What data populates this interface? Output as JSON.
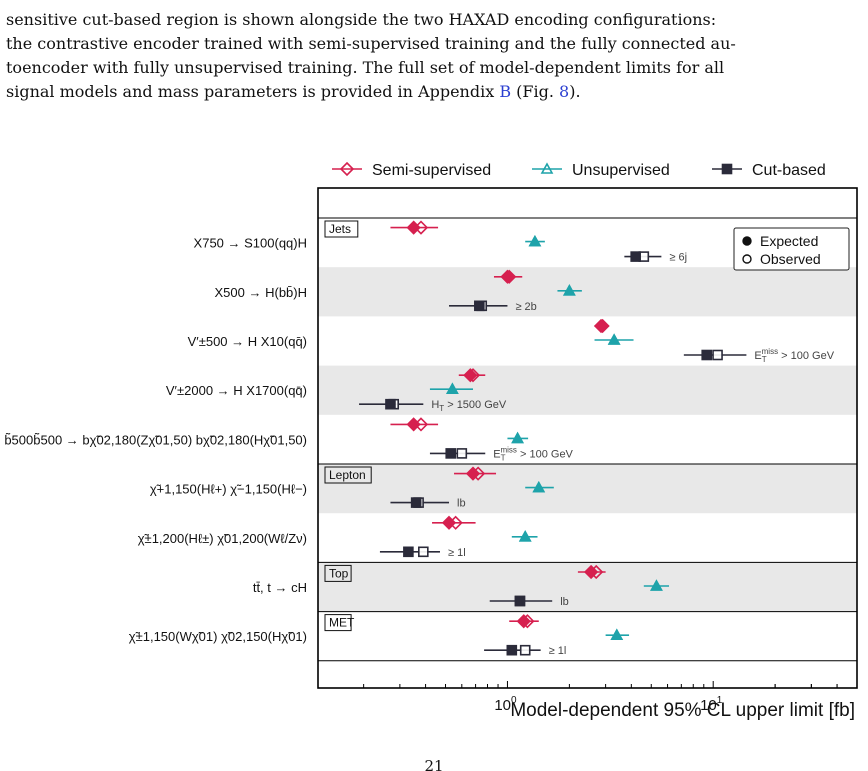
{
  "paper": {
    "line1": "sensitive cut-based region is shown alongside the two HAXAD encoding configurations:",
    "line2": "the contrastive encoder trained with semi-supervised training and the fully connected au-",
    "line3": "toencoder with fully unsupervised training. The full set of model-dependent limits for all",
    "line4_pre": "signal models and mass parameters is provided in Appendix ",
    "line4_link1": "B",
    "line4_mid": " (Fig. ",
    "line4_link2": "8",
    "line4_post": ").",
    "page_number": "21"
  },
  "chart_data": {
    "type": "scatter",
    "xscale": "log",
    "xlim": [
      0.12,
      50
    ],
    "xlabel": "Model-dependent 95% CL upper limit [fb]",
    "xticks": [
      {
        "value": 1,
        "label": "10",
        "exp": "0"
      },
      {
        "value": 10,
        "label": "10",
        "exp": "1"
      }
    ],
    "legend_top": [
      {
        "name": "Semi-supervised",
        "color": "#d6204f",
        "marker": "diamond"
      },
      {
        "name": "Unsupervised",
        "color": "#1ea3aa",
        "marker": "triangle"
      },
      {
        "name": "Cut-based",
        "color": "#2b2b3a",
        "marker": "square"
      }
    ],
    "legend_inner": [
      {
        "name": "Expected",
        "style": "filled"
      },
      {
        "name": "Observed",
        "style": "open"
      }
    ],
    "categories": [
      {
        "label": "Jets",
        "start": 0,
        "end": 5
      },
      {
        "label": "Lepton",
        "start": 5,
        "end": 7
      },
      {
        "label": "Top",
        "start": 7,
        "end": 8
      },
      {
        "label": "MET",
        "start": 8,
        "end": 9
      }
    ],
    "rows": [
      {
        "name": "X750 → S100(qq)H",
        "semi": {
          "exp": 0.35,
          "obs": 0.38,
          "lo": 0.27,
          "hi": 0.46
        },
        "unsup": {
          "exp": 1.36,
          "obs": 1.36,
          "lo": 1.22,
          "hi": 1.52
        },
        "cut": {
          "exp": 4.2,
          "obs": 4.6,
          "lo": 3.7,
          "hi": 5.6
        },
        "cut_label": "≥ 6j"
      },
      {
        "name": "X500 → H(bb̄)H",
        "semi": {
          "exp": 1.0,
          "obs": 1.02,
          "lo": 0.86,
          "hi": 1.18
        },
        "unsup": {
          "exp": 2.0,
          "obs": 2.0,
          "lo": 1.75,
          "hi": 2.3
        },
        "cut": {
          "exp": 0.73,
          "obs": 0.75,
          "lo": 0.52,
          "hi": 1.0
        },
        "cut_label": "≥ 2b"
      },
      {
        "name": "V′±500 → H X10(qq̄)",
        "semi": {
          "exp": 2.85,
          "obs": 2.9,
          "lo": 2.65,
          "hi": 3.1
        },
        "unsup": {
          "exp": 3.3,
          "obs": 3.3,
          "lo": 2.65,
          "hi": 4.1
        },
        "cut": {
          "exp": 9.3,
          "obs": 10.5,
          "lo": 7.2,
          "hi": 14.5
        },
        "cut_label": "E_T^miss > 100 GeV"
      },
      {
        "name": "V′±2000 → H X1700(qq̄)",
        "semi": {
          "exp": 0.66,
          "obs": 0.68,
          "lo": 0.58,
          "hi": 0.78
        },
        "unsup": {
          "exp": 0.54,
          "obs": 0.54,
          "lo": 0.42,
          "hi": 0.68
        },
        "cut": {
          "exp": 0.27,
          "obs": 0.28,
          "lo": 0.19,
          "hi": 0.39
        },
        "cut_label": "H_T > 1500 GeV"
      },
      {
        "name": "b̃500b̃500 → bχ̃02,180(Zχ̃01,50) bχ̃02,180(Hχ̃01,50)",
        "semi": {
          "exp": 0.35,
          "obs": 0.38,
          "lo": 0.27,
          "hi": 0.46
        },
        "unsup": {
          "exp": 1.12,
          "obs": 1.12,
          "lo": 1.0,
          "hi": 1.26
        },
        "cut": {
          "exp": 0.53,
          "obs": 0.6,
          "lo": 0.42,
          "hi": 0.78
        },
        "cut_label": "E_T^miss > 100 GeV"
      },
      {
        "name": "χ̃+1,150(Hℓ+) χ̃−1,150(Hℓ−)",
        "semi": {
          "exp": 0.68,
          "obs": 0.72,
          "lo": 0.55,
          "hi": 0.88
        },
        "unsup": {
          "exp": 1.42,
          "obs": 1.42,
          "lo": 1.22,
          "hi": 1.68
        },
        "cut": {
          "exp": 0.36,
          "obs": 0.37,
          "lo": 0.27,
          "hi": 0.52
        },
        "cut_label": "lb"
      },
      {
        "name": "χ̃±1,200(Hℓ±) χ̃01,200(Wℓ/Zν)",
        "semi": {
          "exp": 0.52,
          "obs": 0.56,
          "lo": 0.43,
          "hi": 0.7
        },
        "unsup": {
          "exp": 1.22,
          "obs": 1.22,
          "lo": 1.05,
          "hi": 1.4
        },
        "cut": {
          "exp": 0.33,
          "obs": 0.39,
          "lo": 0.24,
          "hi": 0.47
        },
        "cut_label": "≥ 1l"
      },
      {
        "name": "tt̄, t → cH",
        "semi": {
          "exp": 2.55,
          "obs": 2.7,
          "lo": 2.2,
          "hi": 3.0
        },
        "unsup": {
          "exp": 5.3,
          "obs": 5.3,
          "lo": 4.6,
          "hi": 6.1
        },
        "cut": {
          "exp": 1.15,
          "obs": 1.15,
          "lo": 0.82,
          "hi": 1.65
        },
        "cut_label": "lb"
      },
      {
        "name": "χ̃±1,150(Wχ̃01) χ̃02,150(Hχ̃01)",
        "semi": {
          "exp": 1.2,
          "obs": 1.25,
          "lo": 1.02,
          "hi": 1.42
        },
        "unsup": {
          "exp": 3.4,
          "obs": 3.4,
          "lo": 3.0,
          "hi": 3.9
        },
        "cut": {
          "exp": 1.05,
          "obs": 1.22,
          "lo": 0.77,
          "hi": 1.45
        },
        "cut_label": "≥ 1l"
      }
    ]
  }
}
